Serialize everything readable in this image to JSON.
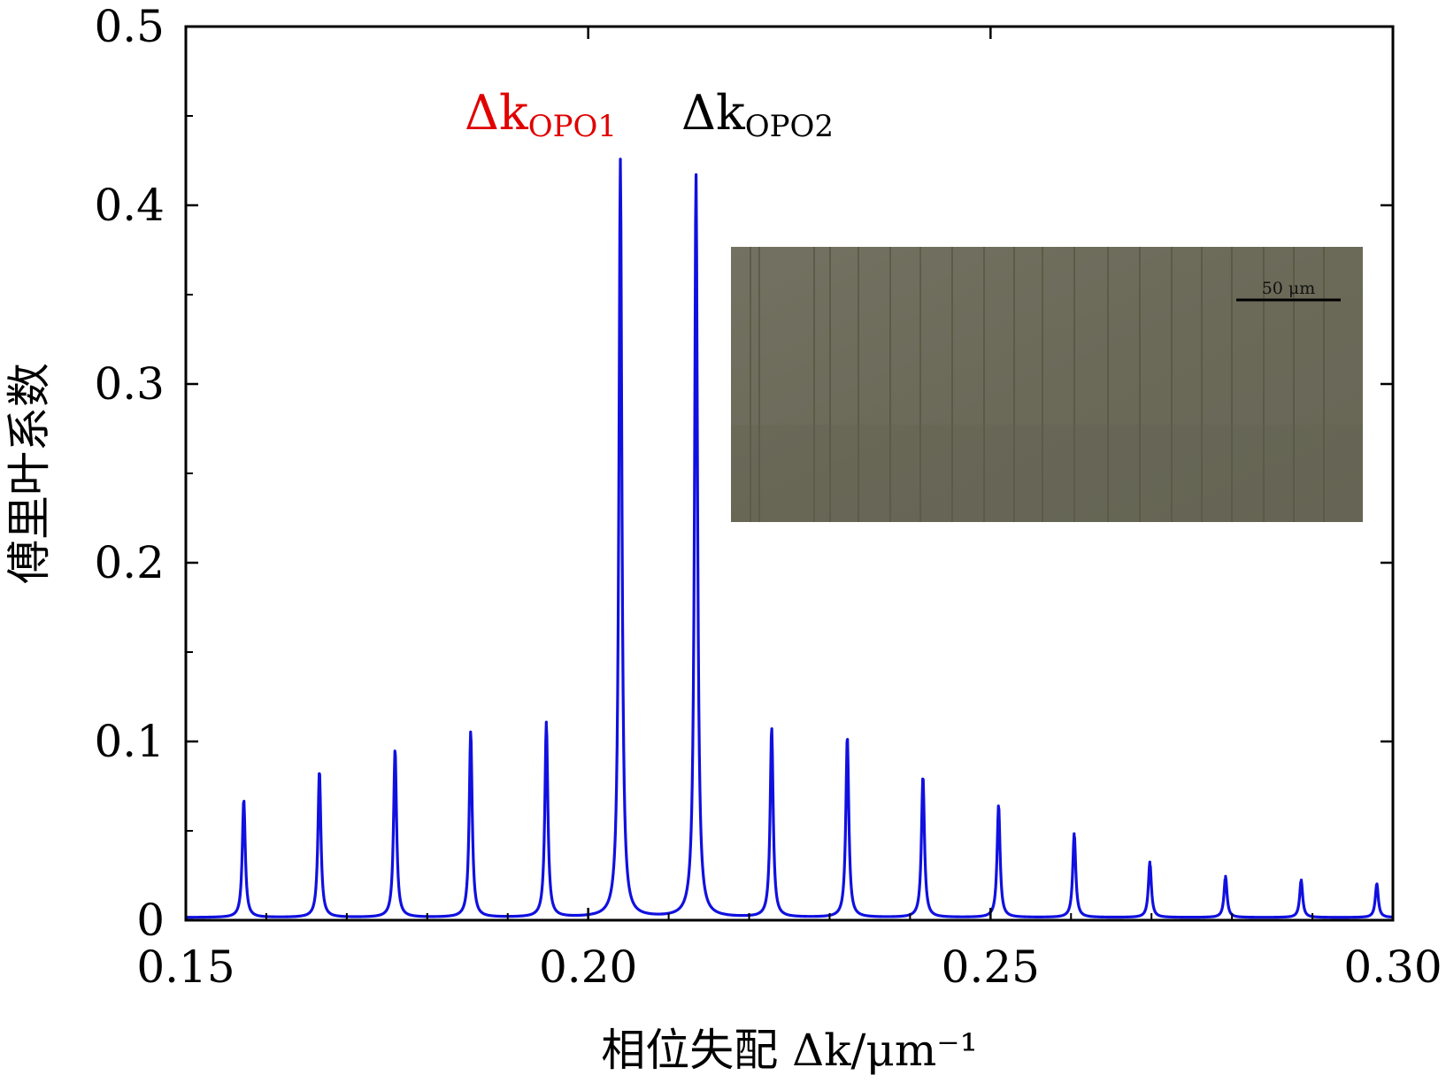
{
  "chart_data": {
    "type": "line",
    "title": "",
    "xlabel": "相位失配 Δk/μm⁻¹",
    "ylabel": "傅里叶系数",
    "xlim": [
      0.15,
      0.3
    ],
    "ylim": [
      0,
      0.5
    ],
    "x_ticks": [
      "0.15",
      "0.20",
      "0.25",
      "0.30"
    ],
    "y_ticks": [
      "0",
      "0.1",
      "0.2",
      "0.3",
      "0.4",
      "0.5"
    ],
    "line_color": "#1010e0",
    "grid": false,
    "legend": "none",
    "series": [
      {
        "peaks_x": [
          0.1572,
          0.1666,
          0.176,
          0.1854,
          0.1948,
          0.204,
          0.2134,
          0.2228,
          0.2322,
          0.2416,
          0.251,
          0.2604,
          0.2698,
          0.2792,
          0.2886,
          0.298
        ],
        "peaks_y": [
          0.066,
          0.082,
          0.094,
          0.104,
          0.109,
          0.424,
          0.416,
          0.106,
          0.101,
          0.079,
          0.063,
          0.047,
          0.031,
          0.023,
          0.021,
          0.019
        ]
      }
    ],
    "annotations": [
      {
        "main": "Δk",
        "sub": "OPO1",
        "color": "#e00000",
        "x": 0.204
      },
      {
        "main": "Δk",
        "sub": "OPO2",
        "color": "#000000",
        "x": 0.2134
      }
    ],
    "inset": {
      "description_color": "#6e6c5a",
      "scale_label": "50 μm"
    }
  }
}
